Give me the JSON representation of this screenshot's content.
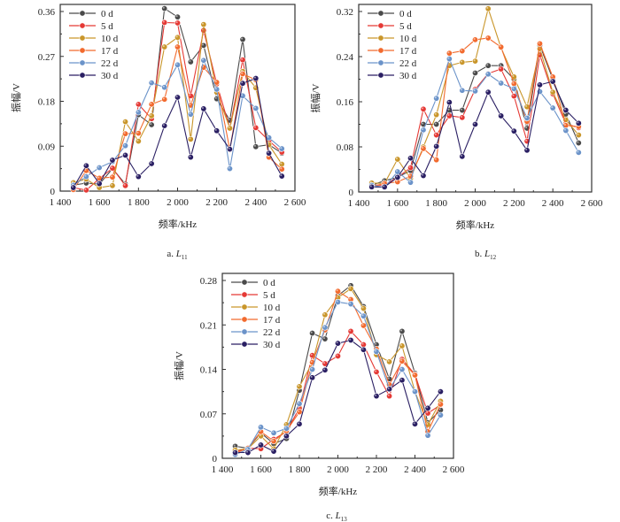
{
  "chart_data": [
    {
      "type": "line",
      "caption_prefix": "a.",
      "caption_symbol": "L",
      "caption_sub": "11",
      "xlabel": "频率/kHz",
      "ylabel": "振幅/V",
      "xlim": [
        1400,
        2600
      ],
      "ylim": [
        0,
        0.36
      ],
      "xticks": [
        "1 400",
        "1 600",
        "1 800",
        "2 000",
        "2 200",
        "2 400",
        "2 600"
      ],
      "yticks": [
        "0",
        "0.09",
        "0.18",
        "0.27",
        "0.36"
      ],
      "legend_position": "top-left",
      "x": [
        1467,
        1533,
        1600,
        1667,
        1733,
        1800,
        1867,
        1933,
        2000,
        2067,
        2133,
        2200,
        2267,
        2333,
        2400,
        2467,
        2533
      ],
      "series": [
        {
          "name": "0 d",
          "color": "#4a4a4a",
          "values": [
            0.012,
            0.016,
            0.014,
            0.045,
            0.014,
            0.153,
            0.133,
            0.366,
            0.349,
            0.259,
            0.292,
            0.185,
            0.142,
            0.304,
            0.089,
            0.093,
            0.076
          ]
        },
        {
          "name": "5 d",
          "color": "#e53935",
          "values": [
            0.007,
            0.002,
            0.025,
            0.046,
            0.011,
            0.174,
            0.145,
            0.338,
            0.337,
            0.191,
            0.322,
            0.215,
            0.126,
            0.263,
            0.127,
            0.101,
            0.078
          ]
        },
        {
          "name": "10 d",
          "color": "#c9962b",
          "values": [
            0.017,
            0.024,
            0.007,
            0.011,
            0.139,
            0.1,
            0.151,
            0.289,
            0.308,
            0.104,
            0.334,
            0.198,
            0.126,
            0.24,
            0.207,
            0.093,
            0.054
          ]
        },
        {
          "name": "17 d",
          "color": "#f26a2e",
          "values": [
            0.003,
            0.041,
            0.026,
            0.028,
            0.115,
            0.116,
            0.174,
            0.184,
            0.289,
            0.172,
            0.248,
            0.218,
            0.083,
            0.235,
            0.223,
            0.068,
            0.044
          ]
        },
        {
          "name": "22 d",
          "color": "#6b93c9",
          "values": [
            0.012,
            0.029,
            0.047,
            0.059,
            0.091,
            0.158,
            0.217,
            0.208,
            0.253,
            0.154,
            0.262,
            0.204,
            0.045,
            0.191,
            0.166,
            0.107,
            0.085
          ]
        },
        {
          "name": "30 d",
          "color": "#2a1f63",
          "values": [
            0.007,
            0.051,
            0.015,
            0.062,
            0.072,
            0.029,
            0.055,
            0.131,
            0.188,
            0.068,
            0.165,
            0.121,
            0.084,
            0.216,
            0.226,
            0.076,
            0.03
          ]
        }
      ]
    },
    {
      "type": "line",
      "caption_prefix": "b.",
      "caption_symbol": "L",
      "caption_sub": "12",
      "xlabel": "频率/kHz",
      "ylabel": "振幅/V",
      "xlim": [
        1400,
        2600
      ],
      "ylim": [
        0,
        0.32
      ],
      "xticks": [
        "1 400",
        "1 600",
        "1 800",
        "2 000",
        "2 200",
        "2 400",
        "2 600"
      ],
      "yticks": [
        "0",
        "0.08",
        "0.16",
        "0.24",
        "0.32"
      ],
      "legend_position": "top-left",
      "x": [
        1467,
        1533,
        1600,
        1667,
        1733,
        1800,
        1867,
        1933,
        2000,
        2067,
        2133,
        2200,
        2267,
        2333,
        2400,
        2467,
        2533
      ],
      "series": [
        {
          "name": "0 d",
          "color": "#4a4a4a",
          "values": [
            0.012,
            0.02,
            0.026,
            0.038,
            0.12,
            0.12,
            0.145,
            0.145,
            0.211,
            0.224,
            0.224,
            0.2,
            0.113,
            0.26,
            0.2,
            0.138,
            0.087
          ]
        },
        {
          "name": "5 d",
          "color": "#e53935",
          "values": [
            0.012,
            0.012,
            0.026,
            0.043,
            0.147,
            0.101,
            0.135,
            0.132,
            0.182,
            0.21,
            0.218,
            0.17,
            0.09,
            0.243,
            0.174,
            0.121,
            0.114
          ]
        },
        {
          "name": "10 d",
          "color": "#c9962b",
          "values": [
            0.016,
            0.015,
            0.058,
            0.024,
            0.08,
            0.137,
            0.224,
            0.23,
            0.232,
            0.325,
            0.256,
            0.204,
            0.151,
            0.254,
            0.177,
            0.128,
            0.101
          ]
        },
        {
          "name": "17 d",
          "color": "#f26a2e",
          "values": [
            0.01,
            0.015,
            0.018,
            0.028,
            0.077,
            0.057,
            0.246,
            0.25,
            0.27,
            0.273,
            0.257,
            0.192,
            0.125,
            0.263,
            0.204,
            0.118,
            0.116
          ]
        },
        {
          "name": "22 d",
          "color": "#6b93c9",
          "values": [
            0.012,
            0.008,
            0.036,
            0.017,
            0.11,
            0.166,
            0.236,
            0.18,
            0.179,
            0.209,
            0.193,
            0.183,
            0.131,
            0.178,
            0.149,
            0.109,
            0.07
          ]
        },
        {
          "name": "30 d",
          "color": "#2a1f63",
          "values": [
            0.009,
            0.009,
            0.026,
            0.06,
            0.029,
            0.081,
            0.159,
            0.063,
            0.12,
            0.177,
            0.135,
            0.108,
            0.074,
            0.19,
            0.196,
            0.145,
            0.122
          ]
        }
      ]
    },
    {
      "type": "line",
      "caption_prefix": "c.",
      "caption_symbol": "L",
      "caption_sub": "13",
      "xlabel": "频率/kHz",
      "ylabel": "振幅/V",
      "xlim": [
        1400,
        2600
      ],
      "ylim": [
        0,
        0.28
      ],
      "xticks": [
        "1 400",
        "1 600",
        "1 800",
        "2 000",
        "2 200",
        "2 400",
        "2 600"
      ],
      "yticks": [
        "0",
        "0.07",
        "0.14",
        "0.21",
        "0.28"
      ],
      "legend_position": "top-left",
      "x": [
        1467,
        1533,
        1600,
        1667,
        1733,
        1800,
        1867,
        1933,
        2000,
        2067,
        2133,
        2200,
        2267,
        2333,
        2400,
        2467,
        2533
      ],
      "series": [
        {
          "name": "0 d",
          "color": "#4a4a4a",
          "values": [
            0.019,
            0.016,
            0.04,
            0.023,
            0.031,
            0.107,
            0.197,
            0.188,
            0.256,
            0.272,
            0.239,
            0.179,
            0.125,
            0.2,
            0.134,
            0.056,
            0.076
          ]
        },
        {
          "name": "5 d",
          "color": "#e53935",
          "values": [
            0.01,
            0.016,
            0.015,
            0.03,
            0.042,
            0.079,
            0.162,
            0.149,
            0.161,
            0.2,
            0.179,
            0.136,
            0.098,
            0.156,
            0.132,
            0.071,
            0.084
          ]
        },
        {
          "name": "10 d",
          "color": "#c9962b",
          "values": [
            0.013,
            0.015,
            0.035,
            0.015,
            0.053,
            0.113,
            0.15,
            0.226,
            0.253,
            0.267,
            0.236,
            0.163,
            0.152,
            0.177,
            0.105,
            0.053,
            0.09
          ]
        },
        {
          "name": "17 d",
          "color": "#f26a2e",
          "values": [
            0.008,
            0.016,
            0.042,
            0.027,
            0.043,
            0.073,
            0.151,
            0.202,
            0.263,
            0.25,
            0.209,
            0.172,
            0.116,
            0.153,
            0.131,
            0.042,
            0.085
          ]
        },
        {
          "name": "22 d",
          "color": "#6b93c9",
          "values": [
            0.006,
            0.014,
            0.049,
            0.04,
            0.047,
            0.086,
            0.14,
            0.206,
            0.246,
            0.243,
            0.224,
            0.168,
            0.109,
            0.14,
            0.105,
            0.036,
            0.068
          ]
        },
        {
          "name": "30 d",
          "color": "#2a1f63",
          "values": [
            0.009,
            0.009,
            0.021,
            0.011,
            0.035,
            0.054,
            0.127,
            0.139,
            0.181,
            0.186,
            0.171,
            0.098,
            0.109,
            0.123,
            0.054,
            0.079,
            0.105
          ]
        }
      ]
    }
  ]
}
